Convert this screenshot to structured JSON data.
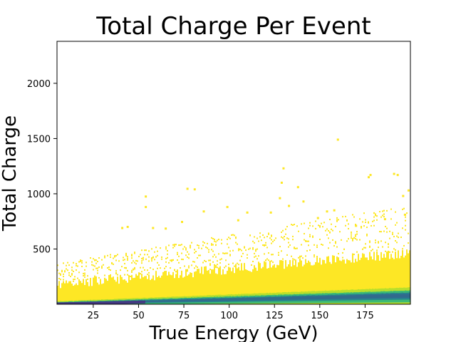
{
  "chart_data": {
    "type": "heatmap",
    "title": "Total Charge Per Event",
    "xlabel": "True Energy (GeV)",
    "ylabel": "Total Charge",
    "xlim": [
      5,
      200
    ],
    "ylim": [
      0,
      2380
    ],
    "xticks": [
      25,
      50,
      75,
      100,
      125,
      150,
      175
    ],
    "yticks": [
      500,
      1000,
      1500,
      2000
    ],
    "grid": false,
    "colormap": "viridis",
    "colors": {
      "sparse": "#fde725",
      "low": "#b5de2b",
      "mid": "#35b779",
      "high": "#26828e",
      "dense": "#31688e",
      "peak": "#443983"
    },
    "core_band": {
      "description_values": "dense ridge of events",
      "charge_at_5_GeV": 10,
      "charge_at_200_GeV": 80
    },
    "envelope": {
      "charge_upper_at_5_GeV": 200,
      "charge_upper_at_200_GeV": 480
    },
    "outliers": [
      {
        "x": 41,
        "y": 690
      },
      {
        "x": 44,
        "y": 700
      },
      {
        "x": 54,
        "y": 975
      },
      {
        "x": 54,
        "y": 880
      },
      {
        "x": 58,
        "y": 690
      },
      {
        "x": 65,
        "y": 685
      },
      {
        "x": 74,
        "y": 745
      },
      {
        "x": 77,
        "y": 1045
      },
      {
        "x": 81,
        "y": 1040
      },
      {
        "x": 86,
        "y": 840
      },
      {
        "x": 99,
        "y": 880
      },
      {
        "x": 105,
        "y": 760
      },
      {
        "x": 110,
        "y": 830
      },
      {
        "x": 123,
        "y": 830
      },
      {
        "x": 128,
        "y": 960
      },
      {
        "x": 129,
        "y": 1100
      },
      {
        "x": 130,
        "y": 1230
      },
      {
        "x": 133,
        "y": 890
      },
      {
        "x": 138,
        "y": 1060
      },
      {
        "x": 141,
        "y": 930
      },
      {
        "x": 149,
        "y": 780
      },
      {
        "x": 154,
        "y": 840
      },
      {
        "x": 158,
        "y": 850
      },
      {
        "x": 160,
        "y": 1490
      },
      {
        "x": 170,
        "y": 710
      },
      {
        "x": 178,
        "y": 1170
      },
      {
        "x": 177,
        "y": 1150
      },
      {
        "x": 186,
        "y": 770
      },
      {
        "x": 191,
        "y": 1180
      },
      {
        "x": 193,
        "y": 1170
      },
      {
        "x": 196,
        "y": 980
      },
      {
        "x": 199,
        "y": 1030
      },
      {
        "x": 197,
        "y": 810
      }
    ]
  }
}
